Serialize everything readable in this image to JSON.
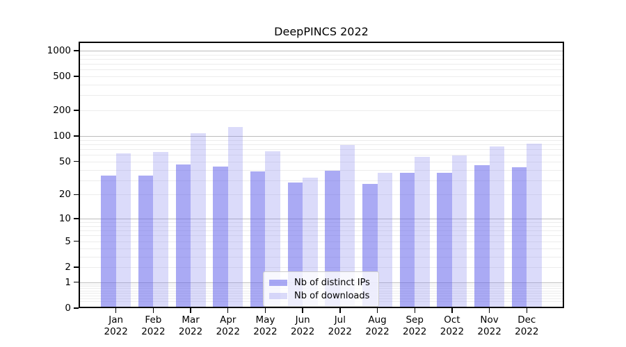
{
  "title": "DeepPINCS 2022",
  "year_label": "2022",
  "chart_data": {
    "type": "bar",
    "title": "DeepPINCS 2022",
    "xlabel": "",
    "ylabel": "",
    "scale": "log1p",
    "ylim": [
      0,
      1271
    ],
    "grid": "horizontal, major at powers of ten (darker) plus log-minor lines (lighter)",
    "legend_position": "bottom-center inside plot",
    "categories": [
      "Jan",
      "Feb",
      "Mar",
      "Apr",
      "May",
      "Jun",
      "Jul",
      "Aug",
      "Sep",
      "Oct",
      "Nov",
      "Dec"
    ],
    "category_year": "2022",
    "yticks": [
      0,
      1,
      2,
      5,
      10,
      20,
      50,
      100,
      200,
      500,
      1000
    ],
    "series": [
      {
        "name": "Nb of distinct IPs",
        "color": "rgba(100,100,235,0.55)",
        "color_composited_hex": "#aaaaf6",
        "values": [
          34,
          34,
          46,
          44,
          38,
          28,
          39,
          27,
          37,
          37,
          45,
          43
        ]
      },
      {
        "name": "Nb of downloads",
        "color": "rgba(135,135,240,0.30)",
        "color_composited_hex": "#dbdbfa",
        "values": [
          62,
          65,
          107,
          127,
          66,
          32,
          78,
          37,
          57,
          59,
          75,
          81
        ]
      }
    ],
    "grid_major_values": [
      1,
      10,
      100,
      1000
    ],
    "grid_major_color": "#bbbbbb",
    "grid_minor_color": "#ececec"
  }
}
